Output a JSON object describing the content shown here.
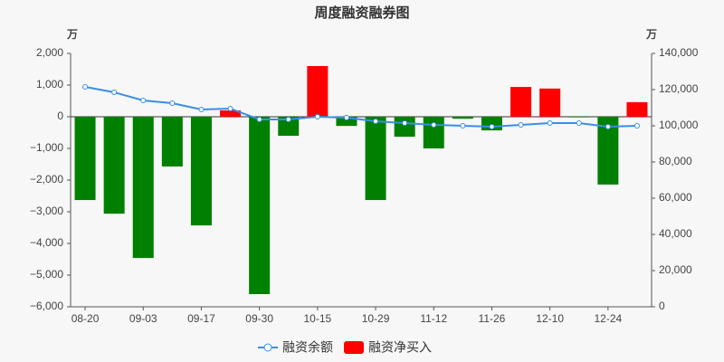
{
  "chart_data": {
    "type": "bar-line",
    "title": "周度融资融券图",
    "y_unit": "万",
    "y2_unit": "万",
    "categories": [
      "08-20",
      null,
      "09-03",
      null,
      "09-17",
      null,
      "09-30",
      null,
      "10-15",
      null,
      "10-29",
      null,
      "11-12",
      null,
      "11-26",
      null,
      "12-10",
      null,
      "12-24",
      null
    ],
    "series": [
      {
        "name": "融资余额",
        "type": "line",
        "axis": "y2",
        "color": "#3a8ee6",
        "values": [
          121500,
          118500,
          114000,
          112500,
          109000,
          109500,
          103500,
          103500,
          105000,
          104500,
          102500,
          101500,
          100500,
          100000,
          99500,
          100500,
          101500,
          101500,
          99500,
          100000
        ]
      },
      {
        "name": "融资净买入",
        "type": "bar",
        "color": "#ff0000",
        "negative_color": "#008000",
        "values": [
          -2630,
          -3060,
          -4460,
          -1570,
          -3430,
          200,
          -5600,
          -600,
          1600,
          -290,
          -2630,
          -630,
          -1000,
          -60,
          -430,
          940,
          890,
          -20,
          -2140,
          460
        ]
      }
    ],
    "ylim": [
      -6000,
      2000
    ],
    "yticks": [
      {
        "value": -6000,
        "label": "−6,000"
      },
      {
        "value": -5000,
        "label": "−5,000"
      },
      {
        "value": -4000,
        "label": "−4,000"
      },
      {
        "value": -3000,
        "label": "−3,000"
      },
      {
        "value": -2000,
        "label": "−2,000"
      },
      {
        "value": -1000,
        "label": "−1,000"
      },
      0,
      {
        "value": 1000,
        "label": "1,000"
      },
      {
        "value": 2000,
        "label": "2,000"
      }
    ],
    "y2lim": [
      0,
      140000
    ],
    "y2ticks": [
      0,
      {
        "value": 20000,
        "label": "20,000"
      },
      {
        "value": 40000,
        "label": "40,000"
      },
      {
        "value": 60000,
        "label": "60,000"
      },
      {
        "value": 80000,
        "label": "80,000"
      },
      {
        "value": 100000,
        "label": "100,000"
      },
      {
        "value": 120000,
        "label": "120,000"
      },
      {
        "value": 140000,
        "label": "140,000"
      }
    ]
  }
}
